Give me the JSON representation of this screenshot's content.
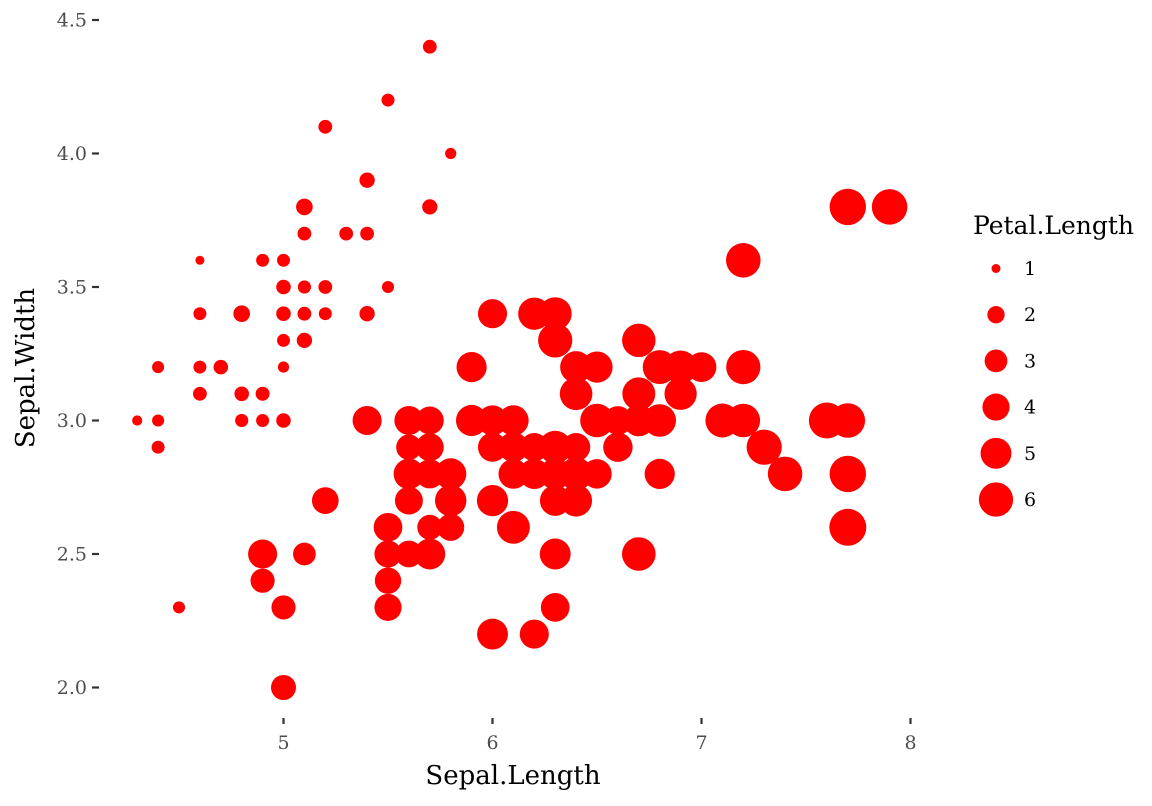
{
  "chart_data": {
    "type": "scatter",
    "xlabel": "Sepal.Length",
    "ylabel": "Sepal.Width",
    "xlim": [
      4.2,
      8.1
    ],
    "ylim": [
      1.9,
      4.5
    ],
    "xticks": [
      5,
      6,
      7,
      8
    ],
    "yticks": [
      2.0,
      2.5,
      3.0,
      3.5,
      4.0,
      4.5
    ],
    "xtick_labels": [
      "5",
      "6",
      "7",
      "8"
    ],
    "ytick_labels": [
      "2.0",
      "2.5",
      "3.0",
      "3.5",
      "4.0",
      "4.5"
    ],
    "grid": false,
    "color": "#ff0000",
    "size_legend": {
      "title": "Petal.Length",
      "placement": "right",
      "values": [
        1,
        2,
        3,
        4,
        5,
        6
      ],
      "labels": [
        "1",
        "2",
        "3",
        "4",
        "5",
        "6"
      ]
    },
    "points": [
      [
        5.1,
        3.5,
        1.4
      ],
      [
        4.9,
        3.0,
        1.4
      ],
      [
        4.7,
        3.2,
        1.3
      ],
      [
        4.6,
        3.1,
        1.5
      ],
      [
        5.0,
        3.6,
        1.4
      ],
      [
        5.4,
        3.9,
        1.7
      ],
      [
        4.6,
        3.4,
        1.4
      ],
      [
        5.0,
        3.4,
        1.5
      ],
      [
        4.4,
        2.9,
        1.4
      ],
      [
        4.9,
        3.1,
        1.5
      ],
      [
        5.4,
        3.7,
        1.5
      ],
      [
        4.8,
        3.4,
        1.6
      ],
      [
        4.8,
        3.0,
        1.4
      ],
      [
        4.3,
        3.0,
        1.1
      ],
      [
        5.8,
        4.0,
        1.2
      ],
      [
        5.7,
        4.4,
        1.5
      ],
      [
        5.4,
        3.9,
        1.3
      ],
      [
        5.1,
        3.5,
        1.4
      ],
      [
        5.7,
        3.8,
        1.7
      ],
      [
        5.1,
        3.8,
        1.5
      ],
      [
        5.4,
        3.4,
        1.7
      ],
      [
        5.1,
        3.7,
        1.5
      ],
      [
        4.6,
        3.6,
        1.0
      ],
      [
        5.1,
        3.3,
        1.7
      ],
      [
        4.8,
        3.4,
        1.9
      ],
      [
        5.0,
        3.0,
        1.6
      ],
      [
        5.0,
        3.4,
        1.6
      ],
      [
        5.2,
        3.5,
        1.5
      ],
      [
        5.2,
        3.4,
        1.4
      ],
      [
        4.7,
        3.2,
        1.6
      ],
      [
        4.8,
        3.1,
        1.6
      ],
      [
        5.4,
        3.4,
        1.5
      ],
      [
        5.2,
        4.1,
        1.5
      ],
      [
        5.5,
        4.2,
        1.4
      ],
      [
        4.9,
        3.1,
        1.5
      ],
      [
        5.0,
        3.2,
        1.2
      ],
      [
        5.5,
        3.5,
        1.3
      ],
      [
        4.9,
        3.6,
        1.4
      ],
      [
        4.4,
        3.0,
        1.3
      ],
      [
        5.1,
        3.4,
        1.5
      ],
      [
        5.0,
        3.5,
        1.3
      ],
      [
        4.5,
        2.3,
        1.3
      ],
      [
        4.4,
        3.2,
        1.3
      ],
      [
        5.0,
        3.5,
        1.6
      ],
      [
        5.1,
        3.8,
        1.9
      ],
      [
        4.8,
        3.0,
        1.4
      ],
      [
        5.1,
        3.8,
        1.6
      ],
      [
        4.6,
        3.2,
        1.4
      ],
      [
        5.3,
        3.7,
        1.5
      ],
      [
        5.0,
        3.3,
        1.4
      ],
      [
        7.0,
        3.2,
        4.7
      ],
      [
        6.4,
        3.2,
        4.5
      ],
      [
        6.9,
        3.1,
        4.9
      ],
      [
        5.5,
        2.3,
        4.0
      ],
      [
        6.5,
        2.8,
        4.6
      ],
      [
        5.7,
        2.8,
        4.5
      ],
      [
        6.3,
        3.3,
        4.7
      ],
      [
        4.9,
        2.4,
        3.3
      ],
      [
        6.6,
        2.9,
        4.6
      ],
      [
        5.2,
        2.7,
        3.9
      ],
      [
        5.0,
        2.0,
        3.5
      ],
      [
        5.9,
        3.0,
        4.2
      ],
      [
        6.0,
        2.2,
        4.0
      ],
      [
        6.1,
        2.9,
        4.7
      ],
      [
        5.6,
        2.9,
        3.6
      ],
      [
        6.7,
        3.1,
        4.4
      ],
      [
        5.6,
        3.0,
        4.5
      ],
      [
        5.8,
        2.7,
        4.1
      ],
      [
        6.2,
        2.2,
        4.5
      ],
      [
        5.6,
        2.5,
        3.9
      ],
      [
        5.9,
        3.2,
        4.8
      ],
      [
        6.1,
        2.8,
        4.0
      ],
      [
        6.3,
        2.5,
        4.9
      ],
      [
        6.1,
        2.8,
        4.7
      ],
      [
        6.4,
        2.9,
        4.3
      ],
      [
        6.6,
        3.0,
        4.4
      ],
      [
        6.8,
        2.8,
        4.8
      ],
      [
        6.7,
        3.0,
        5.0
      ],
      [
        6.0,
        2.9,
        4.5
      ],
      [
        5.7,
        2.6,
        3.5
      ],
      [
        5.5,
        2.4,
        3.8
      ],
      [
        5.5,
        2.4,
        3.7
      ],
      [
        5.8,
        2.7,
        3.9
      ],
      [
        6.0,
        2.7,
        5.1
      ],
      [
        5.4,
        3.0,
        4.5
      ],
      [
        6.0,
        3.4,
        4.5
      ],
      [
        6.7,
        3.1,
        4.7
      ],
      [
        6.3,
        2.3,
        4.4
      ],
      [
        5.6,
        3.0,
        4.1
      ],
      [
        5.5,
        2.5,
        4.0
      ],
      [
        5.5,
        2.6,
        4.4
      ],
      [
        6.1,
        3.0,
        4.6
      ],
      [
        5.8,
        2.6,
        4.0
      ],
      [
        5.0,
        2.3,
        3.3
      ],
      [
        5.6,
        2.7,
        4.2
      ],
      [
        5.7,
        3.0,
        4.2
      ],
      [
        5.7,
        2.9,
        4.2
      ],
      [
        6.2,
        2.9,
        4.3
      ],
      [
        5.1,
        2.5,
        3.0
      ],
      [
        5.7,
        2.8,
        4.1
      ],
      [
        6.3,
        3.3,
        6.0
      ],
      [
        5.8,
        2.7,
        5.1
      ],
      [
        7.1,
        3.0,
        5.9
      ],
      [
        6.3,
        2.9,
        5.6
      ],
      [
        6.5,
        3.0,
        5.8
      ],
      [
        7.6,
        3.0,
        6.6
      ],
      [
        4.9,
        2.5,
        4.5
      ],
      [
        7.3,
        2.9,
        6.3
      ],
      [
        6.7,
        2.5,
        5.8
      ],
      [
        7.2,
        3.6,
        6.1
      ],
      [
        6.5,
        3.2,
        5.1
      ],
      [
        6.4,
        2.7,
        5.3
      ],
      [
        6.8,
        3.0,
        5.5
      ],
      [
        5.7,
        2.5,
        5.0
      ],
      [
        5.8,
        2.8,
        5.1
      ],
      [
        6.4,
        3.2,
        5.3
      ],
      [
        6.5,
        3.0,
        5.5
      ],
      [
        7.7,
        3.8,
        6.7
      ],
      [
        7.7,
        2.6,
        6.9
      ],
      [
        6.0,
        2.2,
        5.0
      ],
      [
        6.9,
        3.2,
        5.7
      ],
      [
        5.6,
        2.8,
        4.9
      ],
      [
        7.7,
        2.8,
        6.7
      ],
      [
        6.3,
        2.7,
        4.9
      ],
      [
        6.7,
        3.3,
        5.7
      ],
      [
        7.2,
        3.2,
        6.0
      ],
      [
        6.2,
        2.8,
        4.8
      ],
      [
        6.1,
        3.0,
        4.9
      ],
      [
        6.4,
        2.8,
        5.6
      ],
      [
        7.2,
        3.0,
        5.8
      ],
      [
        7.4,
        2.8,
        6.1
      ],
      [
        7.9,
        3.8,
        6.4
      ],
      [
        6.4,
        2.8,
        5.6
      ],
      [
        6.3,
        2.8,
        5.1
      ],
      [
        6.1,
        2.6,
        5.6
      ],
      [
        7.7,
        3.0,
        6.1
      ],
      [
        6.3,
        3.4,
        5.6
      ],
      [
        6.4,
        3.1,
        5.5
      ],
      [
        6.0,
        3.0,
        4.8
      ],
      [
        6.9,
        3.1,
        5.4
      ],
      [
        6.7,
        3.1,
        5.6
      ],
      [
        6.9,
        3.1,
        5.1
      ],
      [
        5.8,
        2.7,
        5.1
      ],
      [
        6.8,
        3.2,
        5.9
      ],
      [
        6.7,
        3.3,
        5.7
      ],
      [
        6.7,
        3.0,
        5.2
      ],
      [
        6.3,
        2.5,
        5.0
      ],
      [
        6.5,
        3.0,
        5.2
      ],
      [
        6.2,
        3.4,
        5.4
      ],
      [
        5.9,
        3.0,
        5.1
      ]
    ]
  }
}
